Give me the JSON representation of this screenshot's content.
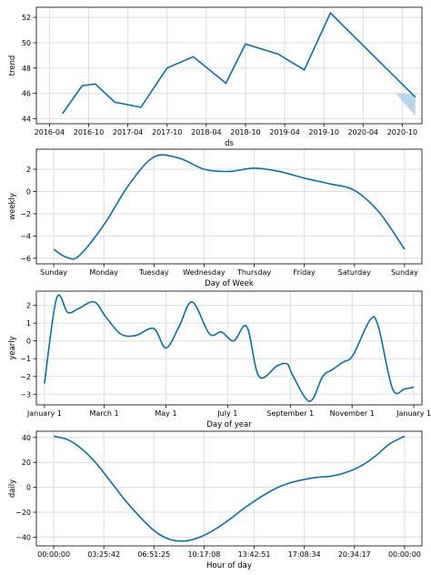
{
  "colors": {
    "line": "#0072B2",
    "band": "#9ecae1",
    "grid": "#dddddd",
    "axis": "#000000"
  },
  "chart_data": [
    {
      "type": "line",
      "xlabel": "ds",
      "ylabel": "trend",
      "xticks": [
        "2016-04",
        "2016-10",
        "2017-04",
        "2017-10",
        "2018-04",
        "2018-10",
        "2019-04",
        "2019-10",
        "2020-04",
        "2020-10"
      ],
      "yticks": [
        "44",
        "46",
        "48",
        "50",
        "52"
      ],
      "ylim": [
        43.6,
        52.8
      ],
      "grid": true,
      "x": [
        "2016-06",
        "2016-09",
        "2016-11",
        "2017-02",
        "2017-06",
        "2017-10",
        "2018-02",
        "2018-07",
        "2018-10",
        "2019-03",
        "2019-07",
        "2019-11",
        "2020-12"
      ],
      "values": [
        44.4,
        46.6,
        46.75,
        45.3,
        44.9,
        48.0,
        48.9,
        46.8,
        49.9,
        49.1,
        47.85,
        52.35,
        45.7
      ],
      "uncertainty": {
        "x": [
          "2020-09",
          "2020-12"
        ],
        "lower": [
          46.0,
          44.2
        ],
        "upper": [
          46.0,
          45.9
        ]
      }
    },
    {
      "type": "line",
      "xlabel": "Day of Week",
      "ylabel": "weekly",
      "xticks": [
        "Sunday",
        "Monday",
        "Tuesday",
        "Wednesday",
        "Thursday",
        "Friday",
        "Saturday",
        "Sunday"
      ],
      "yticks": [
        "-6",
        "-4",
        "-2",
        "0",
        "2"
      ],
      "ylim": [
        -6.5,
        3.8
      ],
      "grid": true,
      "x": [
        0,
        0.25,
        0.5,
        1.0,
        1.5,
        2.0,
        2.5,
        3.0,
        3.5,
        4.0,
        4.5,
        5.0,
        5.5,
        6.0,
        6.5,
        7.0
      ],
      "values": [
        -5.2,
        -5.9,
        -5.8,
        -3.0,
        0.6,
        3.1,
        3.0,
        2.0,
        1.8,
        2.1,
        1.8,
        1.2,
        0.7,
        0.1,
        -1.9,
        -5.2
      ]
    },
    {
      "type": "line",
      "xlabel": "Day of year",
      "ylabel": "yearly",
      "xticks": [
        "January 1",
        "March 1",
        "May 1",
        "July 1",
        "September 1",
        "November 1",
        "January 1"
      ],
      "yticks": [
        "-3",
        "-2",
        "-1",
        "0",
        "1",
        "2"
      ],
      "ylim": [
        -3.6,
        2.8
      ],
      "grid": true,
      "x": [
        0,
        12,
        23,
        33,
        49,
        60,
        75,
        90,
        108,
        120,
        133,
        146,
        163,
        175,
        187,
        200,
        212,
        230,
        240,
        245,
        262,
        275,
        285,
        295,
        305,
        322,
        330,
        344,
        356,
        365
      ],
      "values": [
        -2.4,
        2.4,
        1.6,
        1.8,
        2.2,
        1.4,
        0.4,
        0.3,
        0.7,
        -0.4,
        0.8,
        2.2,
        0.4,
        0.5,
        0.0,
        0.8,
        -2.0,
        -1.4,
        -1.3,
        -1.9,
        -3.4,
        -2.0,
        -1.6,
        -1.2,
        -0.8,
        1.2,
        0.8,
        -2.7,
        -2.7,
        -2.6
      ]
    },
    {
      "type": "line",
      "xlabel": "Hour of day",
      "ylabel": "daily",
      "xticks": [
        "00:00:00",
        "03:25:42",
        "06:51:25",
        "10:17:08",
        "13:42:51",
        "17:08:34",
        "20:34:17",
        "00:00:00"
      ],
      "yticks": [
        "-40",
        "-20",
        "0",
        "20",
        "40"
      ],
      "ylim": [
        -47,
        45
      ],
      "grid": true,
      "x": [
        0,
        1,
        2,
        3,
        4,
        5,
        6,
        7,
        8,
        9,
        10,
        11,
        12,
        13,
        14,
        15,
        16,
        17,
        18,
        19,
        20,
        21,
        22,
        23,
        24
      ],
      "values": [
        41,
        38,
        30,
        18,
        3,
        -12,
        -25,
        -36,
        -42,
        -43,
        -40,
        -34,
        -26,
        -17,
        -9,
        -2,
        3,
        6,
        8,
        9,
        12,
        17,
        25,
        35,
        41
      ]
    }
  ]
}
